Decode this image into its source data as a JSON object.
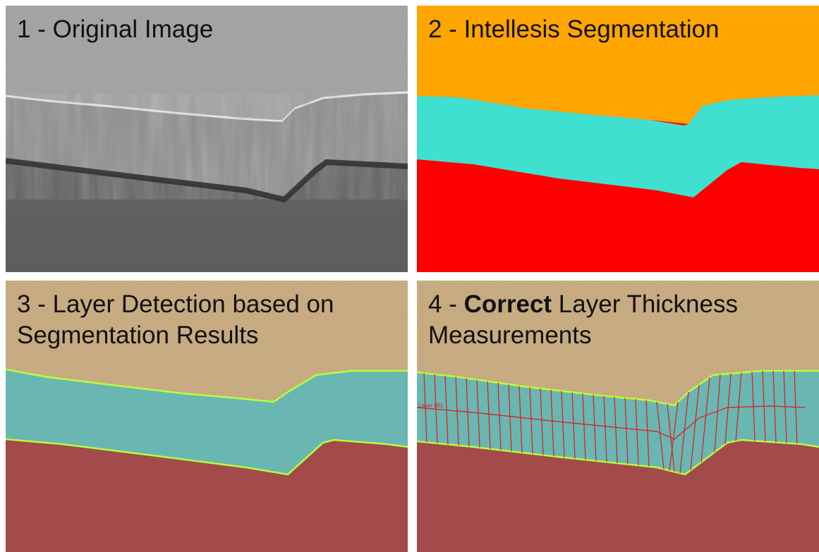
{
  "panels": [
    {
      "number": "1",
      "title": "Original Image"
    },
    {
      "number": "2",
      "title": "Intellesis Segmentation"
    },
    {
      "number": "3",
      "title_lines": [
        "Layer Detection based on",
        "Segmentation Results"
      ]
    },
    {
      "number": "4",
      "title_bold": "Correct",
      "title_rest": "Layer Thickness",
      "title_line2": "Measurements",
      "measurement_label": "Layer 001"
    }
  ],
  "separator": " - ",
  "colors": {
    "seg_top": "#ffa500",
    "seg_middle": "#40e0d0",
    "seg_bottom": "#ff0000",
    "overlay_top": "#c9a877",
    "overlay_middle": "#6ab6b3",
    "overlay_bottom": "#a34a4a",
    "boundary_line": "#b6ff3a",
    "measurement_line": "#e01818"
  }
}
